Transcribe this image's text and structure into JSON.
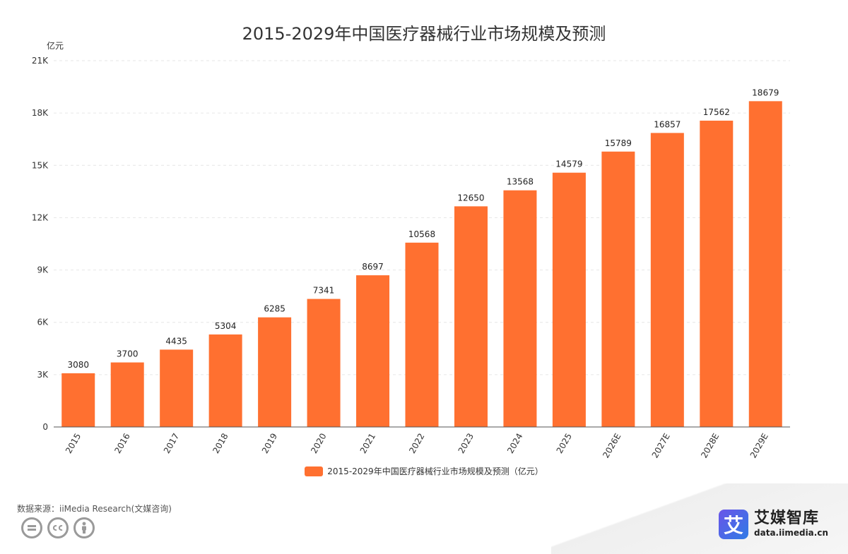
{
  "chart_data": {
    "type": "bar",
    "title": "2015-2029年中国医疗器械行业市场规模及预测",
    "unit": "亿元",
    "categories": [
      "2015",
      "2016",
      "2017",
      "2018",
      "2019",
      "2020",
      "2021",
      "2022",
      "2023",
      "2024",
      "2025",
      "2026E",
      "2027E",
      "2028E",
      "2029E"
    ],
    "series": [
      {
        "name": "2015-2029年中国医疗器械行业市场规模及预测（亿元）",
        "values": [
          3080,
          3700,
          4435,
          5304,
          6285,
          7341,
          8697,
          10568,
          12650,
          13568,
          14579,
          15789,
          16857,
          17562,
          18679
        ],
        "color": "#ff7030"
      }
    ],
    "ylim": [
      0,
      21000
    ],
    "yticks": [
      0,
      3000,
      6000,
      9000,
      12000,
      15000,
      18000,
      21000
    ],
    "ytick_labels": [
      "0",
      "3K",
      "6K",
      "9K",
      "12K",
      "15K",
      "18K",
      "21K"
    ],
    "grid": true,
    "legend_position": "bottom",
    "x_label_rotation": -60
  },
  "footer": {
    "source": "数据来源：iiMedia Research(文媒咨询)",
    "brand_name": "艾媒智库",
    "brand_logo_char": "艾",
    "brand_url": "data.iimedia.cn"
  },
  "license_icons": [
    "cc-equal-icon",
    "cc-icon",
    "cc-by-person-icon"
  ],
  "colors": {
    "bar": "#ff7030",
    "grid": "#e6e6e6",
    "axis": "#555555"
  }
}
